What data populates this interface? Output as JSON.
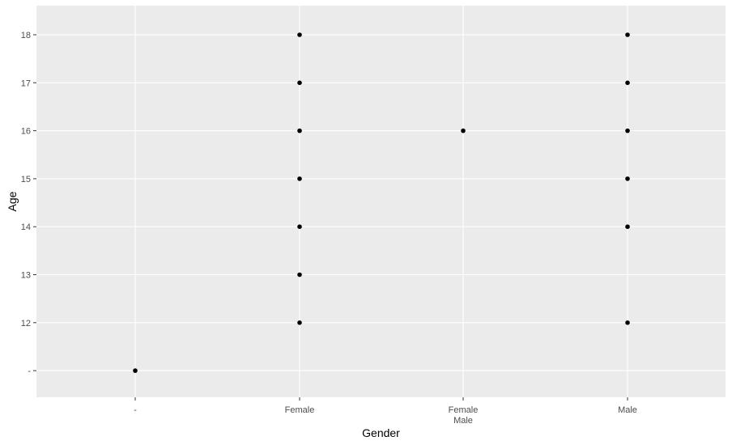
{
  "chart_data": {
    "type": "scatter",
    "title": "",
    "xlabel": "Gender",
    "ylabel": "Age",
    "x_categories": [
      {
        "key": "dash",
        "lines": [
          "-"
        ]
      },
      {
        "key": "female",
        "lines": [
          "Female"
        ]
      },
      {
        "key": "female_male",
        "lines": [
          "Female",
          "Male"
        ]
      },
      {
        "key": "male",
        "lines": [
          "Male"
        ]
      }
    ],
    "y_categories": [
      "-",
      "12",
      "13",
      "14",
      "15",
      "16",
      "17",
      "18"
    ],
    "points": [
      {
        "x": "-",
        "y": "-"
      },
      {
        "x": "Female",
        "y": "12"
      },
      {
        "x": "Female",
        "y": "13"
      },
      {
        "x": "Female",
        "y": "14"
      },
      {
        "x": "Female",
        "y": "15"
      },
      {
        "x": "Female",
        "y": "16"
      },
      {
        "x": "Female",
        "y": "17"
      },
      {
        "x": "Female",
        "y": "18"
      },
      {
        "x": "Female\nMale",
        "y": "16"
      },
      {
        "x": "Male",
        "y": "12"
      },
      {
        "x": "Male",
        "y": "14"
      },
      {
        "x": "Male",
        "y": "15"
      },
      {
        "x": "Male",
        "y": "16"
      },
      {
        "x": "Male",
        "y": "17"
      },
      {
        "x": "Male",
        "y": "18"
      }
    ],
    "grid": true,
    "legend": "none",
    "colors": {
      "panel_background": "#ebebeb",
      "grid_major": "#ffffff",
      "point": "#000000",
      "tick_text": "#4d4d4d",
      "title_text": "#000000"
    }
  }
}
